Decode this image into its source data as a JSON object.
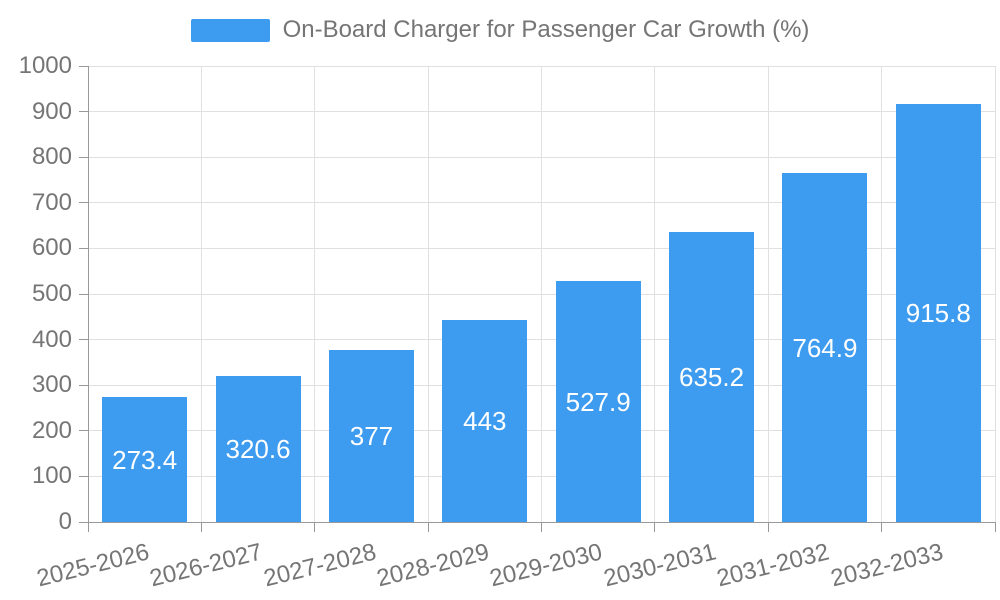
{
  "chart_data": {
    "type": "bar",
    "title": "On-Board Charger for Passenger Car Growth (%)",
    "legend": {
      "label": "On-Board Charger for Passenger Car Growth (%)",
      "position": "top-center"
    },
    "categories": [
      "2025-2026",
      "2026-2027",
      "2027-2028",
      "2028-2029",
      "2029-2030",
      "2030-2031",
      "2031-2032",
      "2032-2033"
    ],
    "values": [
      273.4,
      320.6,
      377,
      443,
      527.9,
      635.2,
      764.9,
      915.8
    ],
    "value_labels": [
      "273.4",
      "320.6",
      "377",
      "443",
      "527.9",
      "635.2",
      "764.9",
      "915.8"
    ],
    "xlabel": "",
    "ylabel": "",
    "ylim": [
      0,
      1000
    ],
    "ytick_step": 100,
    "ytick_labels": [
      "0",
      "100",
      "200",
      "300",
      "400",
      "500",
      "600",
      "700",
      "800",
      "900",
      "1000"
    ],
    "x_label_rotation_deg": -14,
    "grid": true,
    "colors": {
      "bar": "#3D9BF0",
      "bar_value_text": "#FFFFFF",
      "axis_text": "#757575",
      "legend_text": "#757575",
      "grid_line": "#E0E0E0",
      "axis_line": "#999999",
      "tick_line": "#999999",
      "background": "#FFFFFF"
    }
  }
}
